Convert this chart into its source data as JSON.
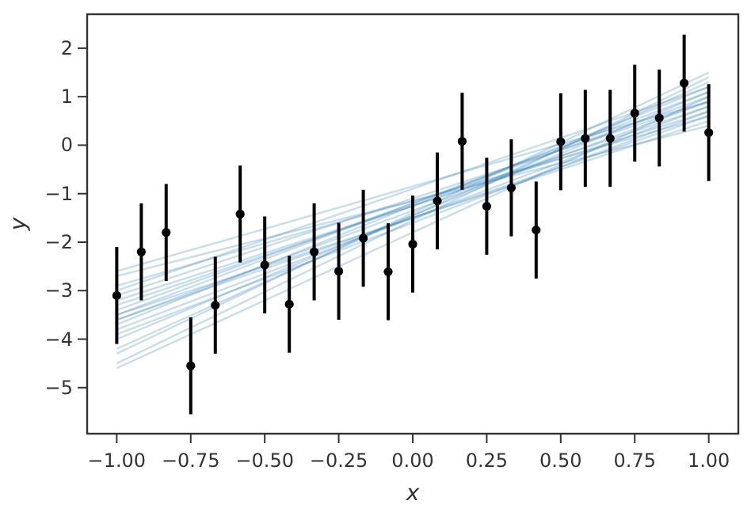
{
  "chart_data": {
    "type": "scatter",
    "xlabel": "x",
    "ylabel": "y",
    "xlim": [
      -1.1,
      1.1
    ],
    "ylim": [
      -5.95,
      2.7
    ],
    "xticks": [
      {
        "value": -1,
        "label": "−1.00"
      },
      {
        "value": -0.75,
        "label": "−0.75"
      },
      {
        "value": -0.5,
        "label": "−0.50"
      },
      {
        "value": -0.25,
        "label": "−0.25"
      },
      {
        "value": 0,
        "label": "0.00"
      },
      {
        "value": 0.25,
        "label": "0.25"
      },
      {
        "value": 0.5,
        "label": "0.50"
      },
      {
        "value": 0.75,
        "label": "0.75"
      },
      {
        "value": 1,
        "label": "1.00"
      }
    ],
    "yticks": [
      {
        "value": -5,
        "label": "−5"
      },
      {
        "value": -4,
        "label": "−4"
      },
      {
        "value": -3,
        "label": "−3"
      },
      {
        "value": -2,
        "label": "−2"
      },
      {
        "value": -1,
        "label": "−1"
      },
      0,
      1,
      2
    ],
    "grid": false,
    "series": [
      {
        "type": "line",
        "color": "#1f77b4",
        "x": [
          -1,
          1
        ],
        "values": [
          -3.6,
          0.9
        ],
        "marker": "none"
      },
      {
        "type": "line",
        "color": "#1f77b4",
        "x": [
          -1,
          1
        ],
        "values": [
          -3.2,
          0.7
        ],
        "marker": "none"
      },
      {
        "type": "line",
        "color": "#1f77b4",
        "x": [
          -1,
          1
        ],
        "values": [
          -4.0,
          1.1
        ],
        "marker": "none"
      },
      {
        "type": "line",
        "color": "#1f77b4",
        "x": [
          -1,
          1
        ],
        "values": [
          -2.7,
          0.4
        ],
        "marker": "none"
      },
      {
        "type": "line",
        "color": "#1f77b4",
        "x": [
          -1,
          1
        ],
        "values": [
          -4.5,
          1.4
        ],
        "marker": "none"
      },
      {
        "type": "line",
        "color": "#1f77b4",
        "x": [
          -1,
          1
        ],
        "values": [
          -3.4,
          1.0
        ],
        "marker": "none"
      },
      {
        "type": "line",
        "color": "#1f77b4",
        "x": [
          -1,
          1
        ],
        "values": [
          -3.8,
          0.8
        ],
        "marker": "none"
      },
      {
        "type": "line",
        "color": "#1f77b4",
        "x": [
          -1,
          1
        ],
        "values": [
          -2.9,
          0.6
        ],
        "marker": "none"
      },
      {
        "type": "line",
        "color": "#1f77b4",
        "x": [
          -1,
          1
        ],
        "values": [
          -4.2,
          1.3
        ],
        "marker": "none"
      },
      {
        "type": "line",
        "color": "#1f77b4",
        "x": [
          -1,
          1
        ],
        "values": [
          -3.5,
          0.5
        ],
        "marker": "none"
      },
      {
        "type": "line",
        "color": "#1f77b4",
        "x": [
          -1,
          1
        ],
        "values": [
          -3.0,
          1.2
        ],
        "marker": "none"
      },
      {
        "type": "line",
        "color": "#1f77b4",
        "x": [
          -1,
          1
        ],
        "values": [
          -4.6,
          1.0
        ],
        "marker": "none"
      },
      {
        "type": "line",
        "color": "#1f77b4",
        "x": [
          -1,
          1
        ],
        "values": [
          -3.7,
          1.2
        ],
        "marker": "none"
      },
      {
        "type": "line",
        "color": "#1f77b4",
        "x": [
          -1,
          1
        ],
        "values": [
          -3.3,
          0.8
        ],
        "marker": "none"
      },
      {
        "type": "line",
        "color": "#1f77b4",
        "x": [
          -1,
          1
        ],
        "values": [
          -2.6,
          0.9
        ],
        "marker": "none"
      },
      {
        "type": "line",
        "color": "#1f77b4",
        "x": [
          -1,
          1
        ],
        "values": [
          -3.9,
          0.7
        ],
        "marker": "none"
      },
      {
        "type": "line",
        "color": "#1f77b4",
        "x": [
          -1,
          1
        ],
        "values": [
          -4.3,
          1.5
        ],
        "marker": "none"
      },
      {
        "type": "line",
        "color": "#1f77b4",
        "x": [
          -1,
          1
        ],
        "values": [
          -3.1,
          0.9
        ],
        "marker": "none"
      },
      {
        "type": "line",
        "color": "#1f77b4",
        "x": [
          -1,
          1
        ],
        "values": [
          -3.6,
          0.6
        ],
        "marker": "none"
      },
      {
        "type": "line",
        "color": "#1f77b4",
        "x": [
          -1,
          1
        ],
        "values": [
          -3.5,
          1.1
        ],
        "marker": "none"
      },
      {
        "color": "#000000",
        "marker": "circle",
        "x": [
          -1,
          -0.917,
          -0.833,
          -0.75,
          -0.667,
          -0.583,
          -0.5,
          -0.417,
          -0.333,
          -0.25,
          -0.167,
          -0.083,
          0,
          0.083,
          0.167,
          0.25,
          0.333,
          0.417,
          0.5,
          0.583,
          0.667,
          0.75,
          0.833,
          0.917,
          1
        ],
        "values": [
          -3.1,
          -2.2,
          -1.8,
          -4.55,
          -3.3,
          -1.42,
          -2.47,
          -3.28,
          -2.2,
          -2.6,
          -1.92,
          -2.61,
          -2.04,
          -1.15,
          0.08,
          -1.26,
          -0.88,
          -1.75,
          0.07,
          0.14,
          0.14,
          0.66,
          0.56,
          1.28,
          0.26
        ],
        "errors": [
          1,
          1,
          1,
          1,
          1,
          1,
          1,
          1,
          1,
          1,
          1,
          1,
          1,
          1,
          1,
          1,
          1,
          1,
          1,
          1,
          1,
          1,
          1,
          1,
          1
        ]
      }
    ]
  }
}
